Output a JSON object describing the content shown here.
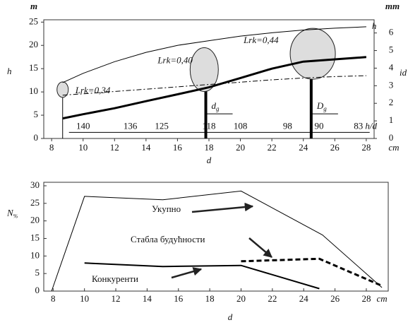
{
  "chart_data": [
    {
      "type": "line",
      "x_label": "d",
      "x_unit": "cm",
      "y_label": "h",
      "y_unit": "m",
      "y2_label": "id",
      "y2_unit": "mm",
      "xlim": [
        7.5,
        28.5
      ],
      "xticks": [
        8,
        10,
        12,
        14,
        16,
        18,
        20,
        22,
        24,
        26,
        28
      ],
      "ylim": [
        0,
        25.5
      ],
      "yticks": [
        0,
        5,
        10,
        15,
        20,
        25
      ],
      "y2lim": [
        0,
        6.75
      ],
      "y2ticks": [
        0,
        1,
        2,
        3,
        4,
        5,
        6
      ],
      "x": [
        8.7,
        10,
        12,
        14,
        16,
        18,
        20,
        22,
        24,
        26,
        28
      ],
      "series": [
        {
          "name": "h",
          "color": "#000000",
          "values": [
            12,
            14,
            16.5,
            18.5,
            20,
            21,
            22,
            22.7,
            23.3,
            23.7,
            24
          ]
        },
        {
          "name": "id",
          "axis": "y2",
          "color": "#000000",
          "values": [
            1.14,
            1.38,
            1.72,
            2.12,
            2.51,
            2.91,
            3.44,
            3.97,
            4.37,
            4.5,
            4.63
          ]
        },
        {
          "color": "#000000",
          "values": [
            9.3,
            9.6,
            10.1,
            10.6,
            11.1,
            11.6,
            12.1,
            12.6,
            13,
            13.3,
            13.5
          ]
        }
      ],
      "hd": {
        "name": "h/d",
        "x": [
          10,
          13,
          15,
          18,
          20,
          23,
          25,
          27.5
        ],
        "values": [
          140,
          136,
          125,
          118,
          108,
          98,
          90,
          83
        ],
        "level": 1.3
      },
      "bubbles": [
        {
          "x": 8.7,
          "y": 10.5,
          "label": "Lrk=0,34"
        },
        {
          "x": 17.7,
          "y": 14.8,
          "label": "Lrk=0,40"
        },
        {
          "x": 24.6,
          "y": 18.2,
          "label": "Lrk=0,44"
        }
      ],
      "verticals": [
        {
          "x": 8.7,
          "top": 9.8
        },
        {
          "x": 17.8,
          "top": 11.8,
          "label": "d",
          "sub": "g"
        },
        {
          "x": 24.5,
          "top": 16.8,
          "label": "D",
          "sub": "g"
        }
      ]
    },
    {
      "type": "line",
      "x_label": "d",
      "x_unit": "cm",
      "y_label": "N",
      "y_label_sub": "%",
      "xlim": [
        7.4,
        29.4
      ],
      "xticks": [
        8,
        10,
        12,
        14,
        16,
        18,
        20,
        22,
        24,
        26,
        28
      ],
      "ylim": [
        0,
        31
      ],
      "yticks": [
        0,
        5,
        10,
        15,
        20,
        25,
        30
      ],
      "series": [
        {
          "name": "Укупно",
          "color": "#000000",
          "x": [
            7.9,
            10,
            15,
            20,
            25.2,
            29
          ],
          "values": [
            0,
            27,
            26,
            28.5,
            16,
            1
          ]
        },
        {
          "name": "Стабла будућности",
          "color": "#000000",
          "x": [
            20,
            25,
            29
          ],
          "values": [
            8.5,
            9.2,
            1.5
          ]
        },
        {
          "name": "Конкуренти",
          "color": "#000000",
          "x": [
            10,
            15,
            20,
            25
          ],
          "values": [
            8,
            7,
            7.3,
            0.7
          ]
        }
      ]
    }
  ]
}
